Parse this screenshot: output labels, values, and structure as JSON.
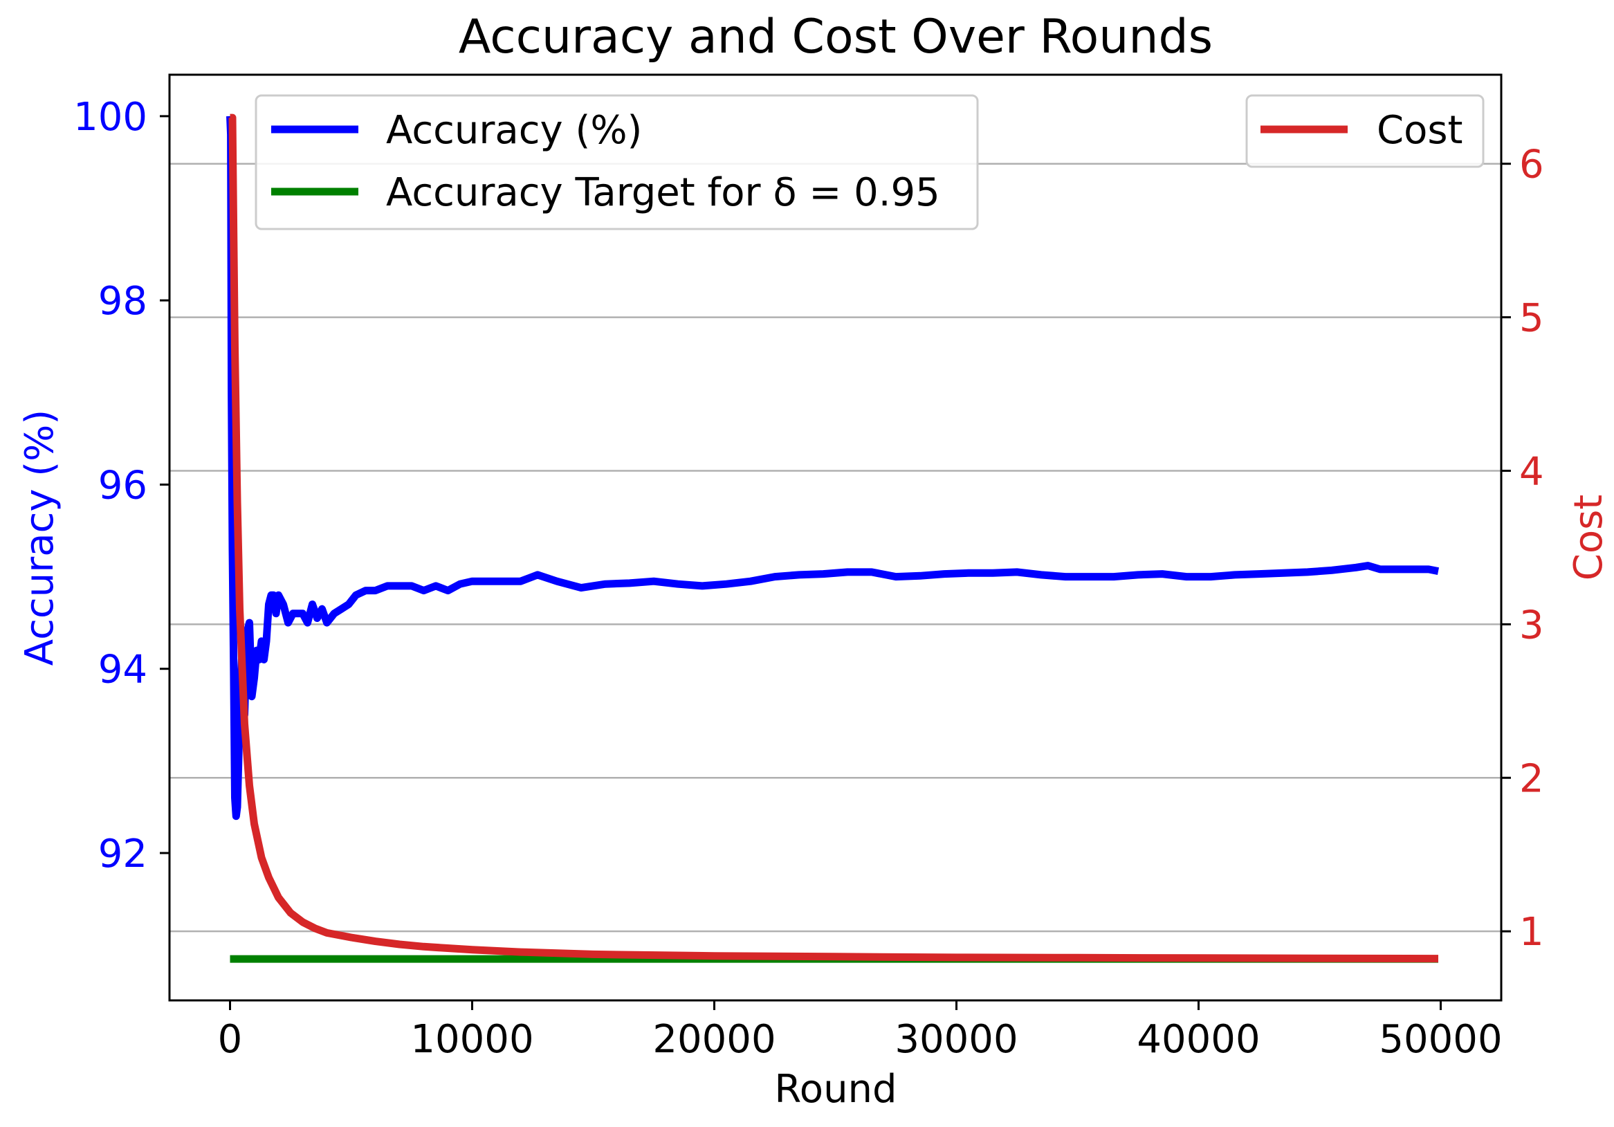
{
  "chart_data": {
    "type": "line",
    "title": "Accuracy and Cost Over Rounds",
    "xlabel": "Round",
    "ylabel_left": "Accuracy (%)",
    "ylabel_right": "Cost",
    "xlim": [
      -2500,
      52500
    ],
    "ylim_left": [
      90.4,
      100.45
    ],
    "ylim_right": [
      0.55,
      6.58
    ],
    "xticks": [
      0,
      10000,
      20000,
      30000,
      40000,
      50000
    ],
    "yticks_left": [
      92,
      94,
      96,
      98,
      100
    ],
    "yticks_right": [
      1,
      2,
      3,
      4,
      5,
      6
    ],
    "grid": "horizontal lines at right-axis ticks",
    "colors": {
      "accuracy": "#0000ff",
      "target": "#008000",
      "cost": "#d62728",
      "left_axis": "#0000ff",
      "right_axis": "#d62728"
    },
    "legend_left": {
      "placement": "upper-left",
      "entries": [
        "Accuracy (%)",
        "Accuracy Target for δ = 0.95"
      ]
    },
    "legend_right": {
      "placement": "upper-right",
      "entries": [
        "Cost"
      ]
    },
    "series": [
      {
        "name": "Accuracy (%)",
        "axis": "left",
        "x": [
          0,
          30,
          60,
          100,
          150,
          200,
          250,
          300,
          350,
          400,
          500,
          600,
          700,
          800,
          900,
          1000,
          1100,
          1200,
          1300,
          1400,
          1500,
          1600,
          1700,
          1800,
          1900,
          2000,
          2200,
          2400,
          2600,
          2800,
          3000,
          3200,
          3400,
          3600,
          3800,
          4000,
          4300,
          4600,
          4900,
          5200,
          5600,
          6000,
          6500,
          7000,
          7500,
          8000,
          8500,
          9000,
          9500,
          10000,
          11000,
          12000,
          12700,
          13500,
          14500,
          15500,
          16500,
          17500,
          18500,
          19500,
          20500,
          21500,
          22500,
          23500,
          24500,
          25500,
          26500,
          27500,
          28500,
          29500,
          30500,
          31500,
          32500,
          33500,
          34500,
          35500,
          36500,
          37500,
          38500,
          39500,
          40500,
          41500,
          42500,
          43500,
          44500,
          45500,
          46500,
          47000,
          47500,
          48500,
          49500,
          49900
        ],
        "y": [
          100.0,
          99.8,
          97.0,
          95.3,
          94.0,
          92.6,
          92.4,
          92.5,
          93.0,
          93.6,
          94.2,
          93.5,
          94.4,
          94.5,
          93.7,
          93.9,
          94.2,
          94.1,
          94.3,
          94.1,
          94.3,
          94.7,
          94.8,
          94.8,
          94.6,
          94.8,
          94.7,
          94.5,
          94.6,
          94.6,
          94.6,
          94.5,
          94.7,
          94.55,
          94.65,
          94.5,
          94.6,
          94.65,
          94.7,
          94.8,
          94.85,
          94.85,
          94.9,
          94.9,
          94.9,
          94.85,
          94.9,
          94.85,
          94.92,
          94.95,
          94.95,
          94.95,
          95.02,
          94.95,
          94.88,
          94.92,
          94.93,
          94.95,
          94.92,
          94.9,
          94.92,
          94.95,
          95.0,
          95.02,
          95.03,
          95.05,
          95.05,
          95.0,
          95.01,
          95.03,
          95.04,
          95.04,
          95.05,
          95.02,
          95.0,
          95.0,
          95.0,
          95.02,
          95.03,
          95.0,
          95.0,
          95.02,
          95.03,
          95.04,
          95.05,
          95.07,
          95.1,
          95.12,
          95.08,
          95.08,
          95.08,
          95.06
        ]
      },
      {
        "name": "Accuracy Target for δ = 0.95",
        "axis": "right",
        "x": [
          0,
          49900
        ],
        "y": [
          0.82,
          0.82
        ]
      },
      {
        "name": "Cost",
        "axis": "right",
        "x": [
          0,
          50,
          100,
          150,
          200,
          300,
          400,
          600,
          800,
          1000,
          1300,
          1600,
          2000,
          2500,
          3000,
          3500,
          4000,
          5000,
          6000,
          7000,
          8000,
          10000,
          12000,
          15000,
          20000,
          25000,
          30000,
          35000,
          40000,
          45000,
          49900
        ],
        "y": [
          6.3,
          6.3,
          6.3,
          5.5,
          4.8,
          3.8,
          3.1,
          2.35,
          1.95,
          1.7,
          1.48,
          1.35,
          1.22,
          1.12,
          1.06,
          1.02,
          0.99,
          0.96,
          0.935,
          0.915,
          0.9,
          0.88,
          0.865,
          0.85,
          0.84,
          0.835,
          0.83,
          0.828,
          0.826,
          0.824,
          0.822
        ]
      }
    ]
  }
}
